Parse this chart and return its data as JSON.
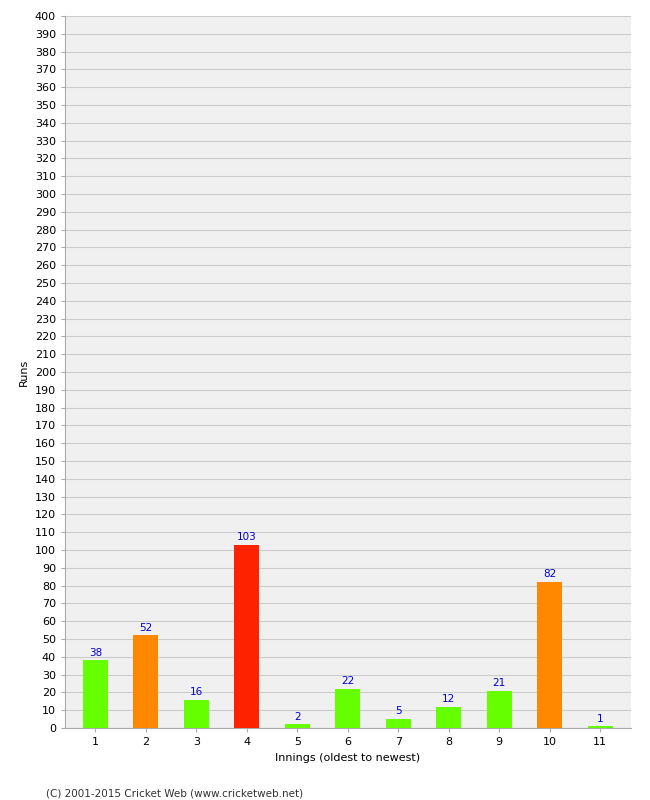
{
  "xlabel": "Innings (oldest to newest)",
  "ylabel": "Runs",
  "categories": [
    "1",
    "2",
    "3",
    "4",
    "5",
    "6",
    "7",
    "8",
    "9",
    "10",
    "11"
  ],
  "values": [
    38,
    52,
    16,
    103,
    2,
    22,
    5,
    12,
    21,
    82,
    1
  ],
  "colors": [
    "#66ff00",
    "#ff8800",
    "#66ff00",
    "#ff2200",
    "#66ff00",
    "#66ff00",
    "#66ff00",
    "#66ff00",
    "#66ff00",
    "#ff8800",
    "#66ff00"
  ],
  "ylim": [
    0,
    400
  ],
  "ytick_step": 10,
  "background_color": "#ffffff",
  "plot_bg_color": "#f0f0f0",
  "grid_color": "#cccccc",
  "label_color": "#0000cc",
  "label_fontsize": 7.5,
  "axis_fontsize": 8,
  "footer": "(C) 2001-2015 Cricket Web (www.cricketweb.net)"
}
